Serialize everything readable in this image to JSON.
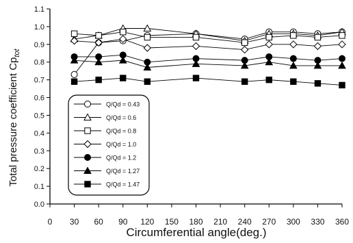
{
  "chart_data": {
    "type": "line",
    "xlabel": "Circumferential angle(deg.)",
    "ylabel": "Total pressure coefficient  Cp",
    "ylabel_sub": "tot",
    "xlim": [
      0,
      360
    ],
    "ylim": [
      0.0,
      1.1
    ],
    "xticks": [
      0,
      30,
      60,
      90,
      120,
      150,
      180,
      210,
      240,
      270,
      300,
      330,
      360
    ],
    "yticks": [
      0.0,
      0.1,
      0.2,
      0.3,
      0.4,
      0.5,
      0.6,
      0.7,
      0.8,
      0.9,
      1.0,
      1.1
    ],
    "x": [
      30,
      60,
      90,
      120,
      180,
      240,
      270,
      300,
      330,
      360
    ],
    "grid": false,
    "legend_position": "lower-left",
    "series": [
      {
        "name": "Q/Qd = 0.43",
        "marker": "circle-open",
        "values": [
          0.73,
          0.91,
          0.92,
          0.95,
          0.96,
          0.93,
          0.97,
          0.97,
          0.96,
          0.97
        ]
      },
      {
        "name": "Q/Qd = 0.6",
        "marker": "triangle-open",
        "values": [
          0.93,
          0.95,
          0.99,
          0.99,
          0.96,
          0.92,
          0.96,
          0.96,
          0.95,
          0.97
        ]
      },
      {
        "name": "Q/Qd = 0.8",
        "marker": "square-open",
        "values": [
          0.96,
          0.95,
          0.97,
          0.94,
          0.94,
          0.91,
          0.94,
          0.95,
          0.94,
          0.95
        ]
      },
      {
        "name": "Q/Qd = 1.0",
        "marker": "diamond-open",
        "values": [
          0.92,
          0.91,
          0.93,
          0.88,
          0.89,
          0.87,
          0.9,
          0.9,
          0.89,
          0.9
        ]
      },
      {
        "name": "Q/Qd = 1.2",
        "marker": "circle-filled",
        "values": [
          0.83,
          0.83,
          0.84,
          0.8,
          0.82,
          0.81,
          0.83,
          0.82,
          0.81,
          0.82
        ]
      },
      {
        "name": "Q/Qd = 1.27",
        "marker": "triangle-filled",
        "values": [
          0.81,
          0.8,
          0.81,
          0.77,
          0.79,
          0.78,
          0.8,
          0.78,
          0.78,
          0.78
        ]
      },
      {
        "name": "Q/Qd = 1.47",
        "marker": "square-filled",
        "values": [
          0.69,
          0.7,
          0.71,
          0.69,
          0.71,
          0.69,
          0.7,
          0.69,
          0.68,
          0.67
        ]
      }
    ]
  }
}
